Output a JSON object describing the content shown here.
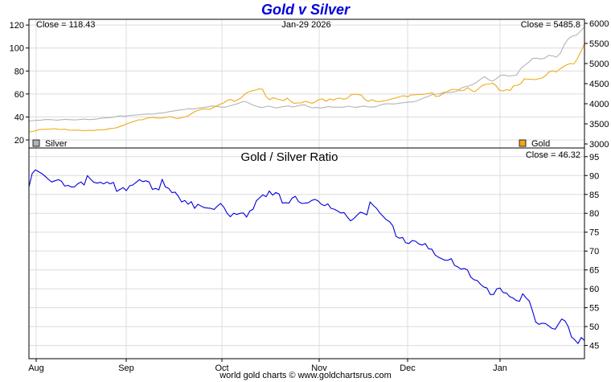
{
  "title": "Gold v Silver",
  "footer": "world gold charts © www.goldchartsrus.com",
  "colors": {
    "gold": "#f0a818",
    "silver": "#b4b4b4",
    "ratio": "#0000dd",
    "grid": "#dcdcdc",
    "title": "#0000dd"
  },
  "chart_data": [
    {
      "type": "line",
      "date_label": "Jan-29  2026",
      "left_close": "Close = 118.43",
      "right_close": "Close = 5485.8",
      "left_axis": {
        "ticks": [
          20,
          40,
          60,
          80,
          100,
          120
        ],
        "range": [
          13,
          125
        ]
      },
      "right_axis": {
        "ticks": [
          3000,
          3500,
          4000,
          4500,
          5000,
          5500,
          6000
        ],
        "range": [
          2900,
          6100
        ]
      },
      "legend": [
        {
          "name": "Silver",
          "color": "#b4b4b4",
          "position": "bottom-left"
        },
        {
          "name": "Gold",
          "color": "#f0a818",
          "position": "bottom-right"
        }
      ],
      "x_ticks": [
        "Aug",
        "Sep",
        "Oct",
        "Nov",
        "Dec",
        "Jan"
      ],
      "series": [
        {
          "name": "Silver",
          "axis": "left",
          "values": [
            36.5,
            36.8,
            37.1,
            37.2,
            37.7,
            37.8,
            37.5,
            37.2,
            37.6,
            37.9,
            37.7,
            37.4,
            37.5,
            37.9,
            38.1,
            37.7,
            37.9,
            38.3,
            38.8,
            39.2,
            39.4,
            39.7,
            40.5,
            41.1,
            40.6,
            41.2,
            41.5,
            41.7,
            42.1,
            42.3,
            42.6,
            42.4,
            43.0,
            43.4,
            43.7,
            44.6,
            45.1,
            45.6,
            46.1,
            46.6,
            47.2,
            46.8,
            47.4,
            48.1,
            48.4,
            48.9,
            49.6,
            49.2,
            48.6,
            48.4,
            49.5,
            50.4,
            51.3,
            52.6,
            53.6,
            52.1,
            50.4,
            49.3,
            48.2,
            48.7,
            49.4,
            48.6,
            47.8,
            48.6,
            49.2,
            49.6,
            48.6,
            49.4,
            50.3,
            50.5,
            48.9,
            47.9,
            48.3,
            47.8,
            48.4,
            49.0,
            48.5,
            48.6,
            48.4,
            48.6,
            49.4,
            48.7,
            48.4,
            49.1,
            49.3,
            48.6,
            48.6,
            49.2,
            50.6,
            51.3,
            51.6,
            51.3,
            51.6,
            52.1,
            52.5,
            53.0,
            53.1,
            53.9,
            55.4,
            56.8,
            58.1,
            59.6,
            59.9,
            60.4,
            61.5,
            61.3,
            61.6,
            62.3,
            64.8,
            66.3,
            66.9,
            68.2,
            70.1,
            72.8,
            75.1,
            72.4,
            71.2,
            73.4,
            76.3,
            76.5,
            75.6,
            75.9,
            76.4,
            81.9,
            84.9,
            87.4,
            90.9,
            91.2,
            90.4,
            91.1,
            93.6,
            93.2,
            92.1,
            95.7,
            103.2,
            108.3,
            110.4,
            111.3,
            114.6,
            118.4
          ]
        },
        {
          "name": "Gold",
          "axis": "right",
          "values": [
            3300,
            3310,
            3330,
            3360,
            3365,
            3365,
            3370,
            3380,
            3370,
            3360,
            3370,
            3350,
            3340,
            3345,
            3345,
            3330,
            3335,
            3340,
            3335,
            3345,
            3350,
            3355,
            3365,
            3385,
            3390,
            3410,
            3445,
            3475,
            3510,
            3540,
            3570,
            3600,
            3600,
            3630,
            3650,
            3660,
            3650,
            3640,
            3650,
            3670,
            3680,
            3650,
            3630,
            3650,
            3670,
            3700,
            3760,
            3810,
            3840,
            3870,
            3870,
            3860,
            3900,
            3940,
            3990,
            4020,
            4080,
            4110,
            4060,
            4100,
            4150,
            4240,
            4290,
            4320,
            4340,
            4370,
            4360,
            4180,
            4100,
            4150,
            4120,
            4100,
            4080,
            4140,
            4060,
            4010,
            4020,
            4020,
            4060,
            4040,
            4010,
            4050,
            4110,
            4120,
            4060,
            4120,
            4090,
            4130,
            4140,
            4110,
            4140,
            4220,
            4240,
            4230,
            4210,
            4100,
            4060,
            4100,
            4060,
            4050,
            4070,
            4080,
            4110,
            4130,
            4150,
            4180,
            4200,
            4170,
            4220,
            4220,
            4230,
            4230,
            4240,
            4260,
            4270,
            4180,
            4190,
            4250,
            4290,
            4340,
            4360,
            4350,
            4320,
            4340,
            4400,
            4330,
            4300,
            4370,
            4450,
            4480,
            4490,
            4510,
            4450,
            4330,
            4320,
            4350,
            4330,
            4450,
            4460,
            4500,
            4620,
            4610,
            4610,
            4600,
            4620,
            4640,
            4700,
            4790,
            4820,
            4790,
            4860,
            4920,
            4970,
            5000,
            4990,
            5120,
            5300,
            5485.8
          ]
        }
      ]
    },
    {
      "type": "line",
      "title": "Gold  /  Silver Ratio",
      "close_label": "Close = 46.32",
      "right_axis": {
        "ticks": [
          45,
          50,
          55,
          60,
          65,
          70,
          75,
          80,
          85,
          90,
          95
        ],
        "range": [
          41.5,
          97.3
        ]
      },
      "x_ticks": [
        "Aug",
        "Sep",
        "Oct",
        "Nov",
        "Dec",
        "Jan"
      ],
      "series": [
        {
          "name": "Gold / Silver Ratio",
          "values": [
            87.0,
            90.5,
            91.5,
            91.0,
            90.5,
            89.8,
            89.0,
            88.3,
            88.6,
            88.9,
            88.5,
            87.2,
            87.4,
            87.0,
            87.0,
            87.8,
            88.3,
            87.5,
            90.0,
            89.0,
            88.2,
            88.0,
            88.2,
            87.8,
            88.3,
            87.8,
            88.2,
            85.8,
            86.3,
            86.8,
            86.0,
            87.3,
            87.5,
            88.2,
            88.9,
            88.4,
            88.6,
            88.3,
            86.3,
            86.6,
            86.2,
            89.0,
            87.0,
            86.6,
            85.5,
            85.6,
            84.5,
            83.0,
            83.4,
            82.4,
            83.1,
            81.3,
            82.4,
            81.9,
            81.5,
            81.4,
            81.3,
            81.0,
            81.9,
            82.6,
            81.6,
            80.0,
            79.1,
            80.0,
            79.7,
            80.0,
            80.1,
            79.0,
            80.6,
            81.1,
            83.3,
            84.1,
            84.9,
            84.4,
            85.9,
            84.8,
            85.5,
            85.1,
            82.7,
            82.8,
            82.7,
            84.0,
            84.5,
            83.1,
            82.6,
            82.7,
            82.8,
            83.4,
            83.7,
            83.3,
            82.4,
            82.0,
            82.5,
            81.3,
            81.1,
            80.6,
            80.1,
            80.2,
            79.0,
            78.0,
            78.6,
            79.5,
            80.3,
            80.0,
            79.6,
            83.0,
            82.1,
            81.3,
            80.1,
            79.2,
            78.3,
            77.8,
            76.7,
            73.9,
            73.4,
            73.6,
            72.2,
            72.0,
            72.8,
            72.6,
            71.9,
            71.6,
            72.0,
            70.6,
            70.5,
            69.0,
            68.4,
            68.0,
            67.6,
            67.6,
            68.0,
            66.2,
            65.8,
            65.2,
            65.4,
            65.0,
            63.1,
            62.4,
            62.2,
            61.2,
            60.5,
            60.2,
            58.5,
            58.5,
            60.0,
            60.2,
            59.0,
            58.9,
            57.9,
            57.6,
            56.9,
            56.7,
            58.7,
            57.6,
            56.8,
            54.2,
            51.2,
            50.6,
            50.9,
            50.8,
            50.2,
            49.5,
            49.3,
            50.7,
            52.0,
            51.5,
            50.0,
            47.3,
            46.5,
            45.5,
            47.1,
            46.32
          ]
        }
      ]
    }
  ]
}
